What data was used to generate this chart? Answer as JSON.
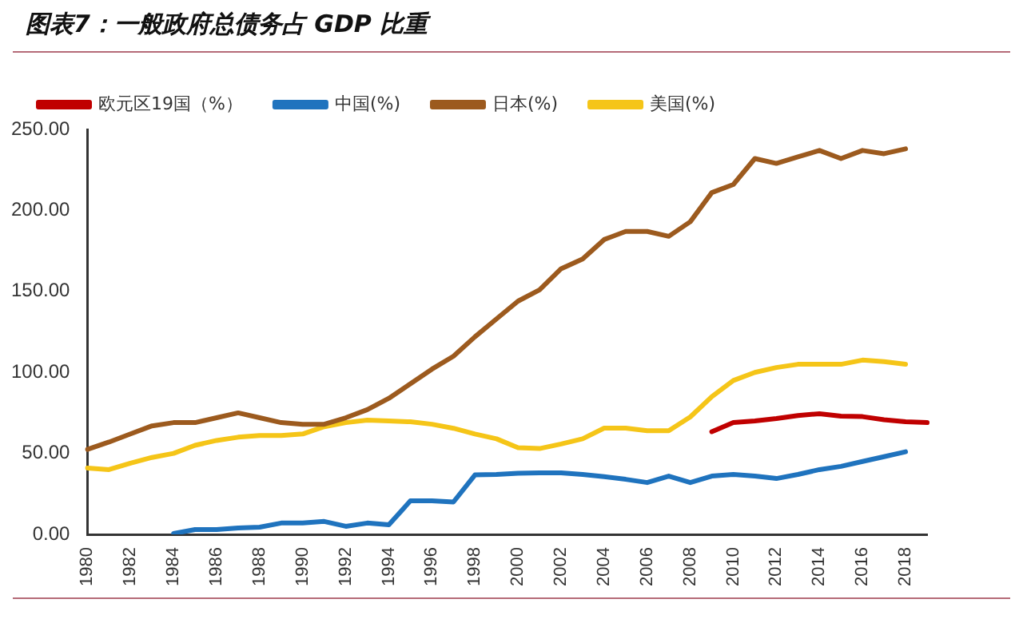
{
  "chart_data": {
    "type": "line",
    "title": "图表7：一般政府总债务占 GDP 比重",
    "categories": [
      "1980",
      null,
      "1982",
      null,
      "1984",
      null,
      "1986",
      null,
      "1988",
      null,
      "1990",
      null,
      "1992",
      null,
      "1994",
      null,
      "1996",
      null,
      "1998",
      null,
      "2000",
      null,
      "2002",
      null,
      "2004",
      null,
      "2006",
      null,
      "2008",
      null,
      "2010",
      null,
      "2012",
      null,
      "2014",
      null,
      "2016",
      null,
      "2018",
      null
    ],
    "series": [
      {
        "name": "欧元区19国（%）",
        "color": "#c00000",
        "values": [
          null,
          null,
          null,
          null,
          null,
          null,
          null,
          null,
          null,
          null,
          null,
          null,
          null,
          null,
          null,
          null,
          null,
          null,
          null,
          null,
          null,
          null,
          null,
          null,
          null,
          null,
          null,
          null,
          null,
          63.4,
          69,
          70,
          71.5,
          73.4,
          74.5,
          73,
          72.7,
          70.8,
          69.5,
          69
        ]
      },
      {
        "name": "中国(%)",
        "color": "#1f73be",
        "values": [
          null,
          null,
          null,
          null,
          0.5,
          3,
          3,
          4,
          4.5,
          7,
          7,
          8,
          5,
          7,
          6,
          20.7,
          20.7,
          20,
          36.7,
          37,
          37.7,
          38,
          38,
          37,
          35.6,
          34,
          32,
          36,
          32,
          36,
          37,
          36,
          34.5,
          37,
          40,
          42,
          45,
          48,
          51,
          null
        ]
      },
      {
        "name": "日本(%)",
        "color": "#9c5a1e",
        "values": [
          52.5,
          57,
          62,
          67,
          69,
          69,
          72,
          75,
          72,
          69,
          68,
          68,
          72,
          77,
          84,
          93,
          102,
          110,
          122,
          133,
          144,
          151,
          164,
          170,
          182,
          187,
          187,
          184,
          193,
          211,
          216,
          232,
          229,
          233,
          237,
          232,
          237,
          235,
          238,
          null
        ]
      },
      {
        "name": "美国(%)",
        "color": "#f5c518",
        "values": [
          41,
          40,
          44,
          47.5,
          50,
          55,
          58,
          60,
          61,
          61,
          62,
          66.5,
          69,
          70.5,
          70,
          69.5,
          68,
          65.5,
          62,
          59,
          53.5,
          53,
          55.8,
          59,
          65.6,
          65.6,
          64,
          64,
          72.5,
          85,
          95,
          100,
          103,
          105,
          105,
          105,
          107.6,
          106.6,
          105,
          null
        ]
      }
    ],
    "ylim": [
      0,
      250
    ],
    "yticks": [
      {
        "value": 0,
        "label": "0.00"
      },
      {
        "value": 50,
        "label": "50.00"
      },
      {
        "value": 100,
        "label": "100.00"
      },
      {
        "value": 150,
        "label": "150.00"
      },
      {
        "value": 200,
        "label": "200.00"
      },
      {
        "value": 250,
        "label": "250.00"
      }
    ],
    "grid": false,
    "legend": "top",
    "marker": "none",
    "line_style": "solid"
  }
}
